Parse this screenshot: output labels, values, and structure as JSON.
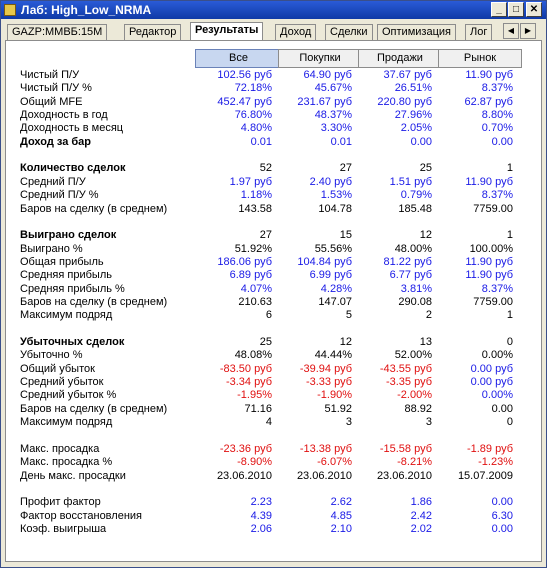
{
  "window": {
    "title": "Лаб: High_Low_NRMA",
    "minimize": "_",
    "maximize": "□",
    "close": "✕"
  },
  "tabs": [
    "GAZP:MMBБ:15M",
    "Редактор",
    "Результаты",
    "Доход",
    "Сделки",
    "Оптимизация",
    "Лог"
  ],
  "active_tab": "Результаты",
  "columns": [
    "Все",
    "Покупки",
    "Продажи",
    "Рынок"
  ],
  "rows": [
    {
      "label": "Чистый П/У",
      "values": [
        "102.56 руб",
        "64.90 руб",
        "37.67 руб",
        "11.90 руб"
      ],
      "colors": [
        "blue",
        "blue",
        "blue",
        "blue"
      ]
    },
    {
      "label": "Чистый П/У %",
      "values": [
        "72.18%",
        "45.67%",
        "26.51%",
        "8.37%"
      ],
      "colors": [
        "blue",
        "blue",
        "blue",
        "blue"
      ]
    },
    {
      "label": "Общий MFE",
      "values": [
        "452.47 руб",
        "231.67 руб",
        "220.80 руб",
        "62.87 руб"
      ],
      "colors": [
        "blue",
        "blue",
        "blue",
        "blue"
      ]
    },
    {
      "label": "Доходность в год",
      "values": [
        "76.80%",
        "48.37%",
        "27.96%",
        "8.80%"
      ],
      "colors": [
        "blue",
        "blue",
        "blue",
        "blue"
      ]
    },
    {
      "label": "Доходность в месяц",
      "values": [
        "4.80%",
        "3.30%",
        "2.05%",
        "0.70%"
      ],
      "colors": [
        "blue",
        "blue",
        "blue",
        "blue"
      ]
    },
    {
      "label": "Доход за бар",
      "bold": true,
      "values": [
        "0.01",
        "0.01",
        "0.00",
        "0.00"
      ],
      "colors": [
        "blue",
        "blue",
        "blue",
        "blue"
      ]
    },
    {
      "label": "",
      "values": [
        "",
        "",
        "",
        ""
      ],
      "colors": [
        "blk",
        "blk",
        "blk",
        "blk"
      ]
    },
    {
      "label": "Количество сделок",
      "bold": true,
      "values": [
        "52",
        "27",
        "25",
        "1"
      ],
      "colors": [
        "blk",
        "blk",
        "blk",
        "blk"
      ]
    },
    {
      "label": "Средний П/У",
      "values": [
        "1.97 руб",
        "2.40 руб",
        "1.51 руб",
        "11.90 руб"
      ],
      "colors": [
        "blue",
        "blue",
        "blue",
        "blue"
      ]
    },
    {
      "label": "Средний П/У %",
      "values": [
        "1.18%",
        "1.53%",
        "0.79%",
        "8.37%"
      ],
      "colors": [
        "blue",
        "blue",
        "blue",
        "blue"
      ]
    },
    {
      "label": "Баров на сделку (в среднем)",
      "values": [
        "143.58",
        "104.78",
        "185.48",
        "7759.00"
      ],
      "colors": [
        "blk",
        "blk",
        "blk",
        "blk"
      ]
    },
    {
      "label": "",
      "values": [
        "",
        "",
        "",
        ""
      ],
      "colors": [
        "blk",
        "blk",
        "blk",
        "blk"
      ]
    },
    {
      "label": "Выиграно сделок",
      "bold": true,
      "values": [
        "27",
        "15",
        "12",
        "1"
      ],
      "colors": [
        "blk",
        "blk",
        "blk",
        "blk"
      ]
    },
    {
      "label": "Выиграно %",
      "values": [
        "51.92%",
        "55.56%",
        "48.00%",
        "100.00%"
      ],
      "colors": [
        "blk",
        "blk",
        "blk",
        "blk"
      ]
    },
    {
      "label": "Общая прибыль",
      "values": [
        "186.06 руб",
        "104.84 руб",
        "81.22 руб",
        "11.90 руб"
      ],
      "colors": [
        "blue",
        "blue",
        "blue",
        "blue"
      ]
    },
    {
      "label": "Средняя прибыль",
      "values": [
        "6.89 руб",
        "6.99 руб",
        "6.77 руб",
        "11.90 руб"
      ],
      "colors": [
        "blue",
        "blue",
        "blue",
        "blue"
      ]
    },
    {
      "label": "Средняя прибыль %",
      "values": [
        "4.07%",
        "4.28%",
        "3.81%",
        "8.37%"
      ],
      "colors": [
        "blue",
        "blue",
        "blue",
        "blue"
      ]
    },
    {
      "label": "Баров на сделку (в среднем)",
      "values": [
        "210.63",
        "147.07",
        "290.08",
        "7759.00"
      ],
      "colors": [
        "blk",
        "blk",
        "blk",
        "blk"
      ]
    },
    {
      "label": "Максимум подряд",
      "values": [
        "6",
        "5",
        "2",
        "1"
      ],
      "colors": [
        "blk",
        "blk",
        "blk",
        "blk"
      ]
    },
    {
      "label": "",
      "values": [
        "",
        "",
        "",
        ""
      ],
      "colors": [
        "blk",
        "blk",
        "blk",
        "blk"
      ]
    },
    {
      "label": "Убыточных сделок",
      "bold": true,
      "values": [
        "25",
        "12",
        "13",
        "0"
      ],
      "colors": [
        "blk",
        "blk",
        "blk",
        "blk"
      ]
    },
    {
      "label": "Убыточно %",
      "values": [
        "48.08%",
        "44.44%",
        "52.00%",
        "0.00%"
      ],
      "colors": [
        "blk",
        "blk",
        "blk",
        "blk"
      ]
    },
    {
      "label": "Общий убыток",
      "values": [
        "-83.50 руб",
        "-39.94 руб",
        "-43.55 руб",
        "0.00 руб"
      ],
      "colors": [
        "red",
        "red",
        "red",
        "blue"
      ]
    },
    {
      "label": "Средний убыток",
      "values": [
        "-3.34 руб",
        "-3.33 руб",
        "-3.35 руб",
        "0.00 руб"
      ],
      "colors": [
        "red",
        "red",
        "red",
        "blue"
      ]
    },
    {
      "label": "Средний убыток %",
      "values": [
        "-1.95%",
        "-1.90%",
        "-2.00%",
        "0.00%"
      ],
      "colors": [
        "red",
        "red",
        "red",
        "blue"
      ]
    },
    {
      "label": "Баров на сделку (в среднем)",
      "values": [
        "71.16",
        "51.92",
        "88.92",
        "0.00"
      ],
      "colors": [
        "blk",
        "blk",
        "blk",
        "blk"
      ]
    },
    {
      "label": "Максимум подряд",
      "values": [
        "4",
        "3",
        "3",
        "0"
      ],
      "colors": [
        "blk",
        "blk",
        "blk",
        "blk"
      ]
    },
    {
      "label": "",
      "values": [
        "",
        "",
        "",
        ""
      ],
      "colors": [
        "blk",
        "blk",
        "blk",
        "blk"
      ]
    },
    {
      "label": "Макс. просадка",
      "values": [
        "-23.36 руб",
        "-13.38 руб",
        "-15.58 руб",
        "-1.89 руб"
      ],
      "colors": [
        "red",
        "red",
        "red",
        "red"
      ]
    },
    {
      "label": "Макс. просадка %",
      "values": [
        "-8.90%",
        "-6.07%",
        "-8.21%",
        "-1.23%"
      ],
      "colors": [
        "red",
        "red",
        "red",
        "red"
      ]
    },
    {
      "label": "День макс. просадки",
      "values": [
        "23.06.2010",
        "23.06.2010",
        "23.06.2010",
        "15.07.2009"
      ],
      "colors": [
        "blk",
        "blk",
        "blk",
        "blk"
      ]
    },
    {
      "label": "",
      "values": [
        "",
        "",
        "",
        ""
      ],
      "colors": [
        "blk",
        "blk",
        "blk",
        "blk"
      ]
    },
    {
      "label": "Профит фактор",
      "values": [
        "2.23",
        "2.62",
        "1.86",
        "0.00"
      ],
      "colors": [
        "blue",
        "blue",
        "blue",
        "blue"
      ]
    },
    {
      "label": "Фактор восстановления",
      "values": [
        "4.39",
        "4.85",
        "2.42",
        "6.30"
      ],
      "colors": [
        "blue",
        "blue",
        "blue",
        "blue"
      ]
    },
    {
      "label": "Коэф. выигрыша",
      "values": [
        "2.06",
        "2.10",
        "2.02",
        "0.00"
      ],
      "colors": [
        "blue",
        "blue",
        "blue",
        "blue"
      ]
    }
  ]
}
